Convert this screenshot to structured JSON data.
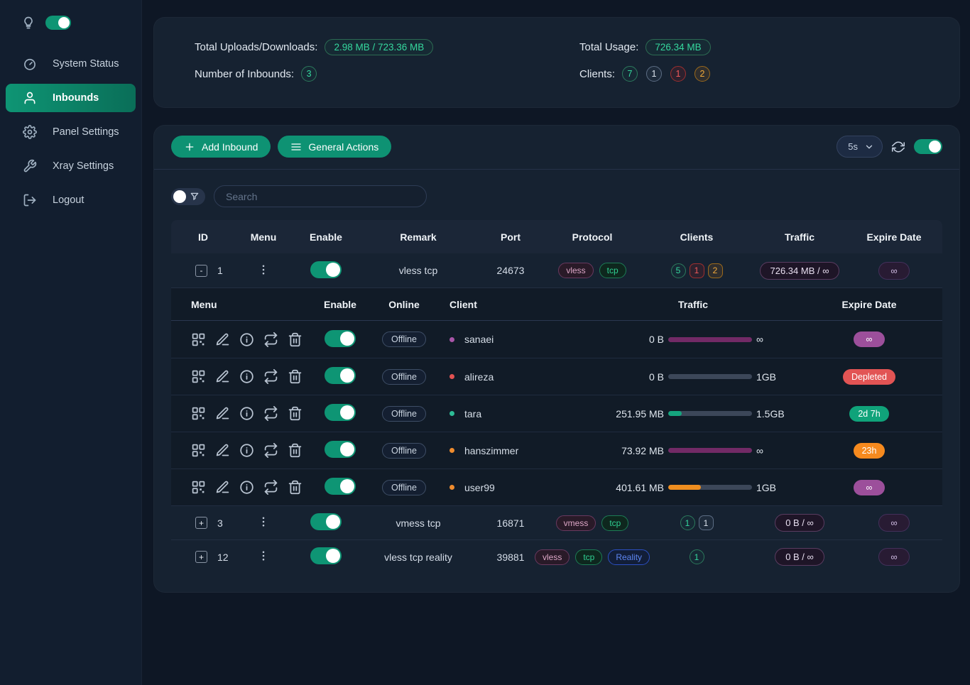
{
  "colors": {
    "accent_teal": "#0e9574",
    "badge_green": "#35d89e",
    "badge_gray": "#dbe3ec",
    "badge_red": "#f25a5a",
    "badge_orange": "#f2a93b",
    "pill_purple": "#9c4f9b",
    "pill_red": "#e25454",
    "pill_green": "#10a37a",
    "pill_orange": "#f68a1e",
    "bar_track": "#3c4759",
    "bar_purple": "#722a66",
    "bar_green": "#15a57e",
    "bar_orange": "#ef8e1f"
  },
  "sidebar": {
    "items": [
      {
        "label": "System Status"
      },
      {
        "label": "Inbounds"
      },
      {
        "label": "Panel Settings"
      },
      {
        "label": "Xray Settings"
      },
      {
        "label": "Logout"
      }
    ]
  },
  "stats": {
    "uploads_label": "Total Uploads/Downloads:",
    "uploads_value": "2.98 MB / 723.36 MB",
    "inbounds_label": "Number of Inbounds:",
    "inbounds_value": "3",
    "usage_label": "Total Usage:",
    "usage_value": "726.34 MB",
    "clients_label": "Clients:",
    "client_counts": {
      "total": "7",
      "online": "1",
      "expired": "1",
      "expiring": "2"
    }
  },
  "toolbar": {
    "add_inbound": "Add Inbound",
    "general_actions": "General Actions",
    "refresh_interval": "5s"
  },
  "search": {
    "placeholder": "Search"
  },
  "table": {
    "headers": {
      "id": "ID",
      "menu": "Menu",
      "enable": "Enable",
      "remark": "Remark",
      "port": "Port",
      "protocol": "Protocol",
      "clients": "Clients",
      "traffic": "Traffic",
      "expire": "Expire Date"
    },
    "client_headers": {
      "menu": "Menu",
      "enable": "Enable",
      "online": "Online",
      "client": "Client",
      "traffic": "Traffic",
      "expire": "Expire Date"
    }
  },
  "inbounds": [
    {
      "id": "1",
      "expand_symbol": "-",
      "remark": "vless tcp",
      "port": "24673",
      "protocols": [
        "vless",
        "tcp"
      ],
      "client_counts": [
        {
          "value": "5"
        },
        {
          "value": "1"
        },
        {
          "value": "2"
        }
      ],
      "traffic": "726.34 MB / ∞",
      "expire": "∞",
      "clients": [
        {
          "name": "sanaei",
          "status": "Offline",
          "dot": "#a855a8",
          "traffic_used": "0 B",
          "traffic_limit": "∞",
          "bar_pct": 100,
          "bar_color": "#722a66",
          "expire_text": "∞",
          "expire_bg": "#9c4f9b"
        },
        {
          "name": "alireza",
          "status": "Offline",
          "dot": "#e25252",
          "traffic_used": "0 B",
          "traffic_limit": "1GB",
          "bar_pct": 0,
          "bar_color": "#722a66",
          "expire_text": "Depleted",
          "expire_bg": "#e25454"
        },
        {
          "name": "tara",
          "status": "Offline",
          "dot": "#2dbd96",
          "traffic_used": "251.95 MB",
          "traffic_limit": "1.5GB",
          "bar_pct": 16,
          "bar_color": "#15a57e",
          "expire_text": "2d 7h",
          "expire_bg": "#10a37a"
        },
        {
          "name": "hanszimmer",
          "status": "Offline",
          "dot": "#f08c2e",
          "traffic_used": "73.92 MB",
          "traffic_limit": "∞",
          "bar_pct": 100,
          "bar_color": "#722a66",
          "expire_text": "23h",
          "expire_bg": "#f68a1e"
        },
        {
          "name": "user99",
          "status": "Offline",
          "dot": "#f08c2e",
          "traffic_used": "401.61 MB",
          "traffic_limit": "1GB",
          "bar_pct": 39,
          "bar_color": "#ef8e1f",
          "expire_text": "∞",
          "expire_bg": "#9c4f9b"
        }
      ]
    },
    {
      "id": "3",
      "expand_symbol": "+",
      "remark": "vmess tcp",
      "port": "16871",
      "protocols": [
        "vmess",
        "tcp"
      ],
      "client_counts": [
        {
          "value": "1"
        },
        {
          "value": "1"
        }
      ],
      "traffic": "0 B / ∞",
      "expire": "∞"
    },
    {
      "id": "12",
      "expand_symbol": "+",
      "remark": "vless tcp reality",
      "port": "39881",
      "protocols": [
        "vless",
        "tcp",
        "Reality"
      ],
      "client_counts": [
        {
          "value": "1"
        }
      ],
      "traffic": "0 B / ∞",
      "expire": "∞"
    }
  ]
}
